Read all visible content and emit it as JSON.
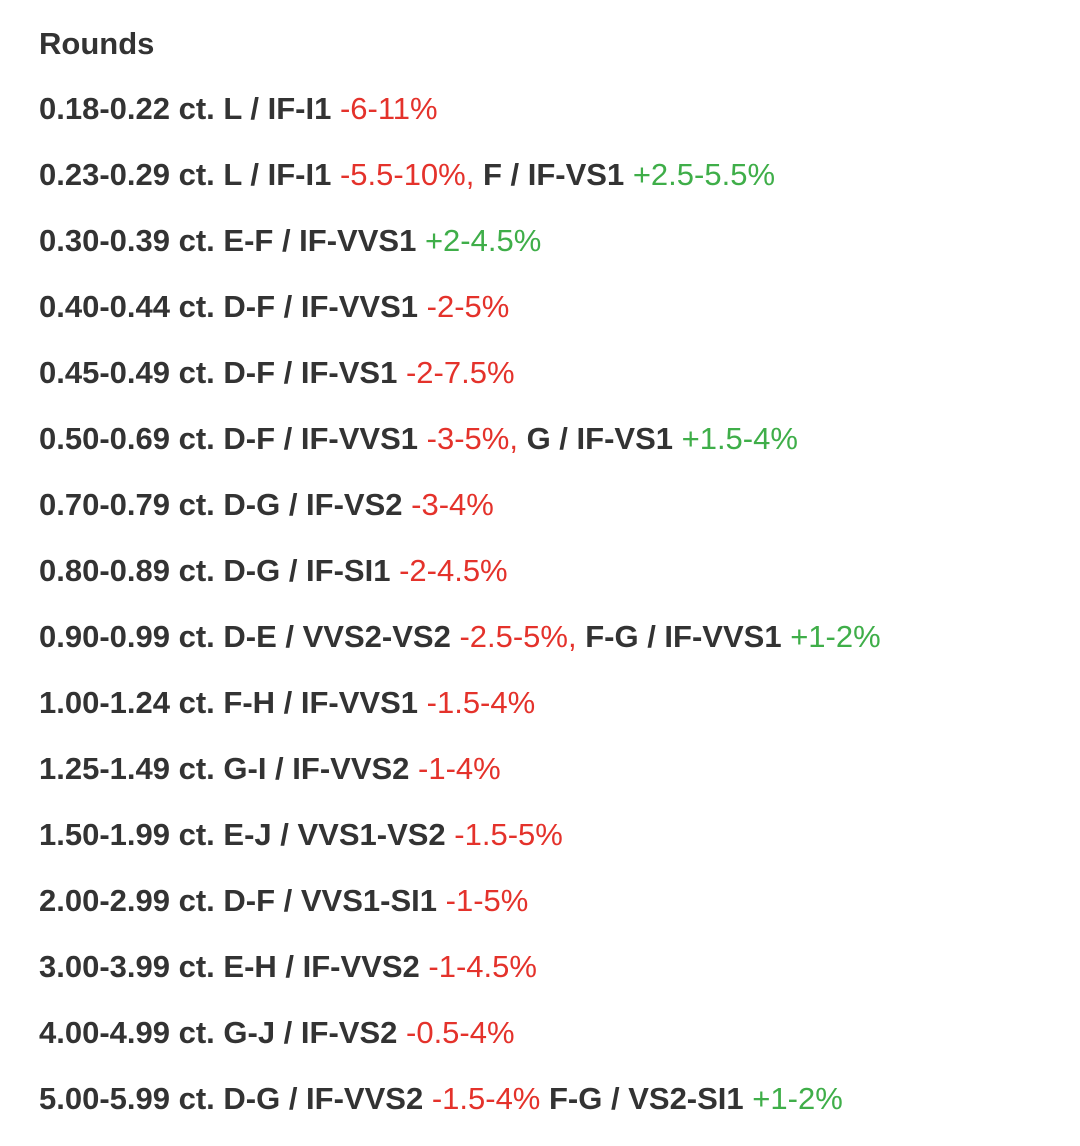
{
  "document": {
    "heading": "Rounds",
    "colors": {
      "text": "#333333",
      "negative": "#e4322b",
      "positive": "#3fae49"
    },
    "rows": [
      {
        "segments": [
          {
            "type": "label",
            "text": "0.18-0.22 ct. L / IF-I1 "
          },
          {
            "type": "neg",
            "text": "-6-11%"
          }
        ]
      },
      {
        "segments": [
          {
            "type": "label",
            "text": "0.23-0.29 ct. L / IF-I1 "
          },
          {
            "type": "neg",
            "text": "-5.5-10%, "
          },
          {
            "type": "label",
            "text": "F / IF-VS1 "
          },
          {
            "type": "pos",
            "text": "+2.5-5.5%"
          }
        ]
      },
      {
        "segments": [
          {
            "type": "label",
            "text": "0.30-0.39 ct. E-F / IF-VVS1 "
          },
          {
            "type": "pos",
            "text": "+2-4.5%"
          }
        ]
      },
      {
        "segments": [
          {
            "type": "label",
            "text": "0.40-0.44 ct. D-F / IF-VVS1 "
          },
          {
            "type": "neg",
            "text": "-2-5%"
          }
        ]
      },
      {
        "segments": [
          {
            "type": "label",
            "text": "0.45-0.49 ct. D-F / IF-VS1 "
          },
          {
            "type": "neg",
            "text": "-2-7.5%"
          }
        ]
      },
      {
        "segments": [
          {
            "type": "label",
            "text": "0.50-0.69 ct. D-F / IF-VVS1 "
          },
          {
            "type": "neg",
            "text": "-3-5%, "
          },
          {
            "type": "label",
            "text": "G / IF-VS1 "
          },
          {
            "type": "pos",
            "text": "+1.5-4%"
          }
        ]
      },
      {
        "segments": [
          {
            "type": "label",
            "text": "0.70-0.79 ct. D-G / IF-VS2 "
          },
          {
            "type": "neg",
            "text": "-3-4%"
          }
        ]
      },
      {
        "segments": [
          {
            "type": "label",
            "text": "0.80-0.89 ct. D-G / IF-SI1 "
          },
          {
            "type": "neg",
            "text": "-2-4.5%"
          }
        ]
      },
      {
        "segments": [
          {
            "type": "label",
            "text": "0.90-0.99 ct. D-E / VVS2-VS2 "
          },
          {
            "type": "neg",
            "text": "-2.5-5%, "
          },
          {
            "type": "label",
            "text": "F-G / IF-VVS1 "
          },
          {
            "type": "pos",
            "text": "+1-2%"
          }
        ]
      },
      {
        "segments": [
          {
            "type": "label",
            "text": "1.00-1.24 ct. F-H / IF-VVS1 "
          },
          {
            "type": "neg",
            "text": "-1.5-4%"
          }
        ]
      },
      {
        "segments": [
          {
            "type": "label",
            "text": "1.25-1.49 ct. G-I / IF-VVS2 "
          },
          {
            "type": "neg",
            "text": "-1-4%"
          }
        ]
      },
      {
        "segments": [
          {
            "type": "label",
            "text": "1.50-1.99 ct. E-J / VVS1-VS2 "
          },
          {
            "type": "neg",
            "text": "-1.5-5%"
          }
        ]
      },
      {
        "segments": [
          {
            "type": "label",
            "text": "2.00-2.99 ct. D-F / VVS1-SI1 "
          },
          {
            "type": "neg",
            "text": "-1-5%"
          }
        ]
      },
      {
        "segments": [
          {
            "type": "label",
            "text": "3.00-3.99 ct. E-H / IF-VVS2 "
          },
          {
            "type": "neg",
            "text": "-1-4.5%"
          }
        ]
      },
      {
        "segments": [
          {
            "type": "label",
            "text": "4.00-4.99 ct. G-J / IF-VS2 "
          },
          {
            "type": "neg",
            "text": "-0.5-4%"
          }
        ]
      },
      {
        "segments": [
          {
            "type": "label",
            "text": "5.00-5.99 ct. D-G / IF-VVS2 "
          },
          {
            "type": "neg",
            "text": "-1.5-4% "
          },
          {
            "type": "label",
            "text": "F-G / VS2-SI1 "
          },
          {
            "type": "pos",
            "text": "+1-2%"
          }
        ]
      }
    ]
  }
}
